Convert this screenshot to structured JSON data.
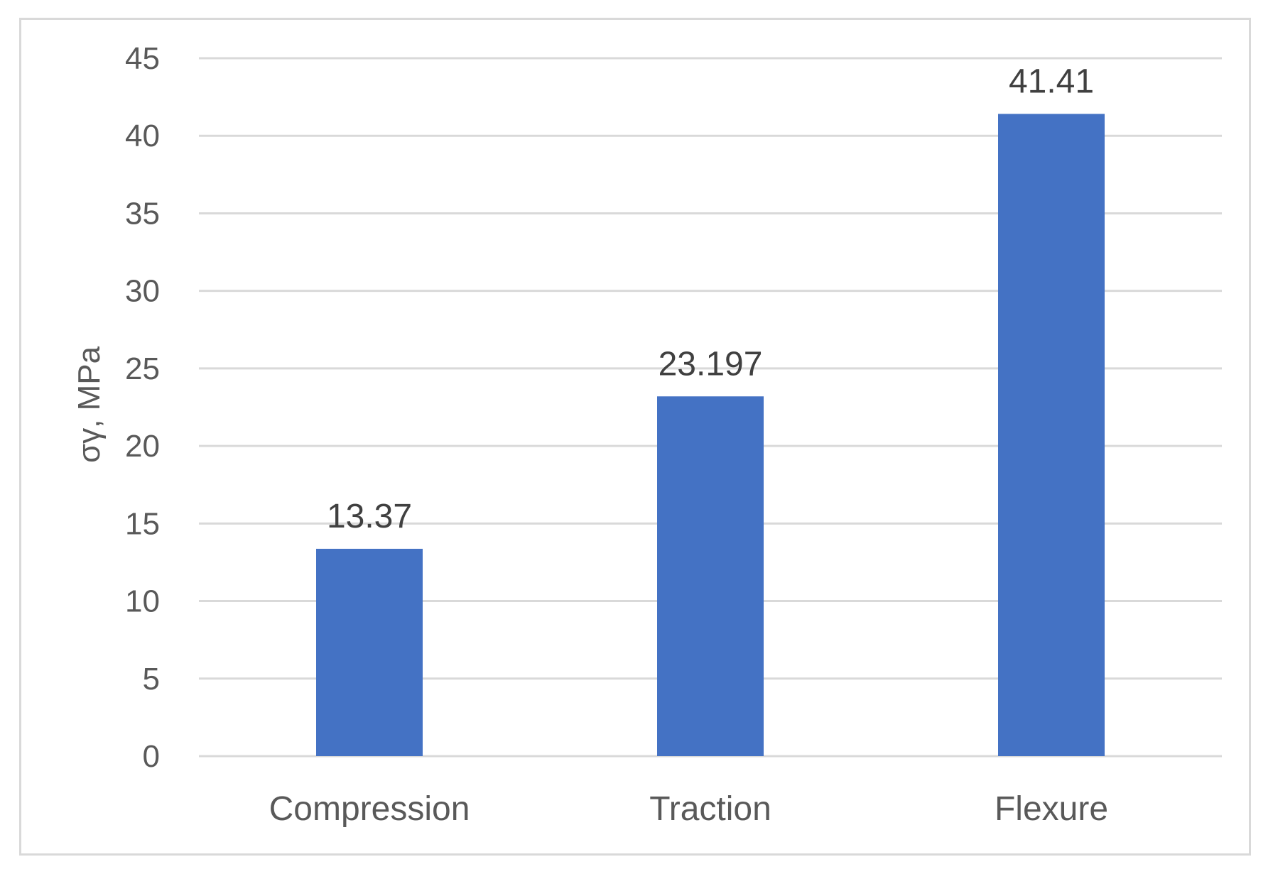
{
  "chart_data": {
    "type": "bar",
    "categories": [
      "Compression",
      "Traction",
      "Flexure"
    ],
    "values": [
      13.37,
      23.197,
      41.41
    ],
    "data_labels": [
      "13.37",
      "23.197",
      "41.41"
    ],
    "title": "",
    "xlabel": "",
    "ylabel": "σγ, MPa",
    "ylim": [
      0,
      45
    ],
    "yticks": [
      0,
      5,
      10,
      15,
      20,
      25,
      30,
      35,
      40,
      45
    ],
    "ytick_labels": [
      "0",
      "5",
      "10",
      "15",
      "20",
      "25",
      "30",
      "35",
      "40",
      "45"
    ],
    "grid": true,
    "legend": "none",
    "colors": {
      "bar": "#4472c4",
      "grid": "#d9d9d9",
      "text": "#595959",
      "data_label": "#404040",
      "frame": "#d9d9d9"
    }
  }
}
